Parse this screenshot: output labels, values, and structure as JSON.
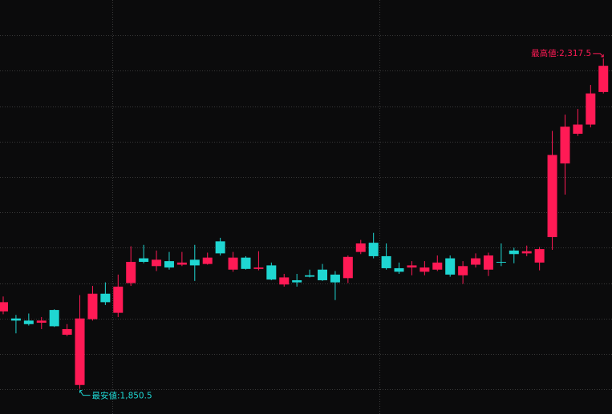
{
  "chart_data": {
    "type": "candlestick",
    "max_label": "最高値:2,317.5",
    "min_label": "最安値:1,850.5",
    "up_color": "#ff1a55",
    "down_color": "#1fd6d2",
    "grid": true,
    "ylim": [
      1815,
      2400
    ],
    "yticks": [
      1850,
      1900,
      1950,
      2000,
      2050,
      2100,
      2150,
      2200,
      2250,
      2300,
      2350
    ],
    "open": [
      1960,
      1950,
      1947,
      1944,
      1962,
      1927,
      1856,
      1949,
      1985,
      1958,
      2000,
      2035,
      2024,
      2031,
      2026,
      2033,
      2027,
      2059,
      2019,
      2036,
      2020,
      2025,
      1998,
      2004,
      2011,
      2019,
      2012,
      2007,
      2044,
      2057,
      2038,
      2021,
      2022,
      2016,
      2019,
      2035,
      2011,
      2026,
      2019,
      2030,
      2046,
      2042,
      2029,
      2065,
      2169,
      2211,
      2224,
      2270
    ],
    "high": [
      1981,
      1955,
      1957,
      1952,
      1963,
      1942,
      1983,
      1996,
      2001,
      2012,
      2052,
      2054,
      2046,
      2044,
      2044,
      2054,
      2043,
      2064,
      2044,
      2038,
      2045,
      2029,
      2013,
      2013,
      2019,
      2027,
      2017,
      2039,
      2061,
      2071,
      2056,
      2029,
      2031,
      2031,
      2039,
      2039,
      2031,
      2042,
      2043,
      2056,
      2050,
      2053,
      2051,
      2215,
      2238,
      2246,
      2280,
      2317.5
    ],
    "low": [
      1956,
      1929,
      1940,
      1935,
      1938,
      1925,
      1850.5,
      1947,
      1969,
      1952,
      1996,
      2028,
      2017,
      2019,
      2024,
      2003,
      2026,
      2039,
      2016,
      2019,
      2018,
      2004,
      1995,
      1995,
      2008,
      2003,
      1976,
      2000,
      2041,
      2035,
      2019,
      2013,
      2011,
      2011,
      2017,
      2009,
      1999,
      2022,
      2010,
      2024,
      2028,
      2038,
      2018,
      2047,
      2125,
      2208,
      2220,
      2268
    ],
    "close": [
      1973,
      1947,
      1942,
      1947,
      1939,
      1935,
      1950,
      1985,
      1973,
      1995,
      2030,
      2030,
      2033,
      2022,
      2029,
      2025,
      2036,
      2042,
      2036,
      2020,
      2022,
      2005,
      2008,
      2001,
      2009,
      2004,
      2001,
      2037,
      2056,
      2038,
      2021,
      2016,
      2025,
      2022,
      2029,
      2012,
      2024,
      2035,
      2039,
      2029,
      2041,
      2045,
      2048,
      2181,
      2221,
      2224,
      2268,
      2307
    ]
  }
}
